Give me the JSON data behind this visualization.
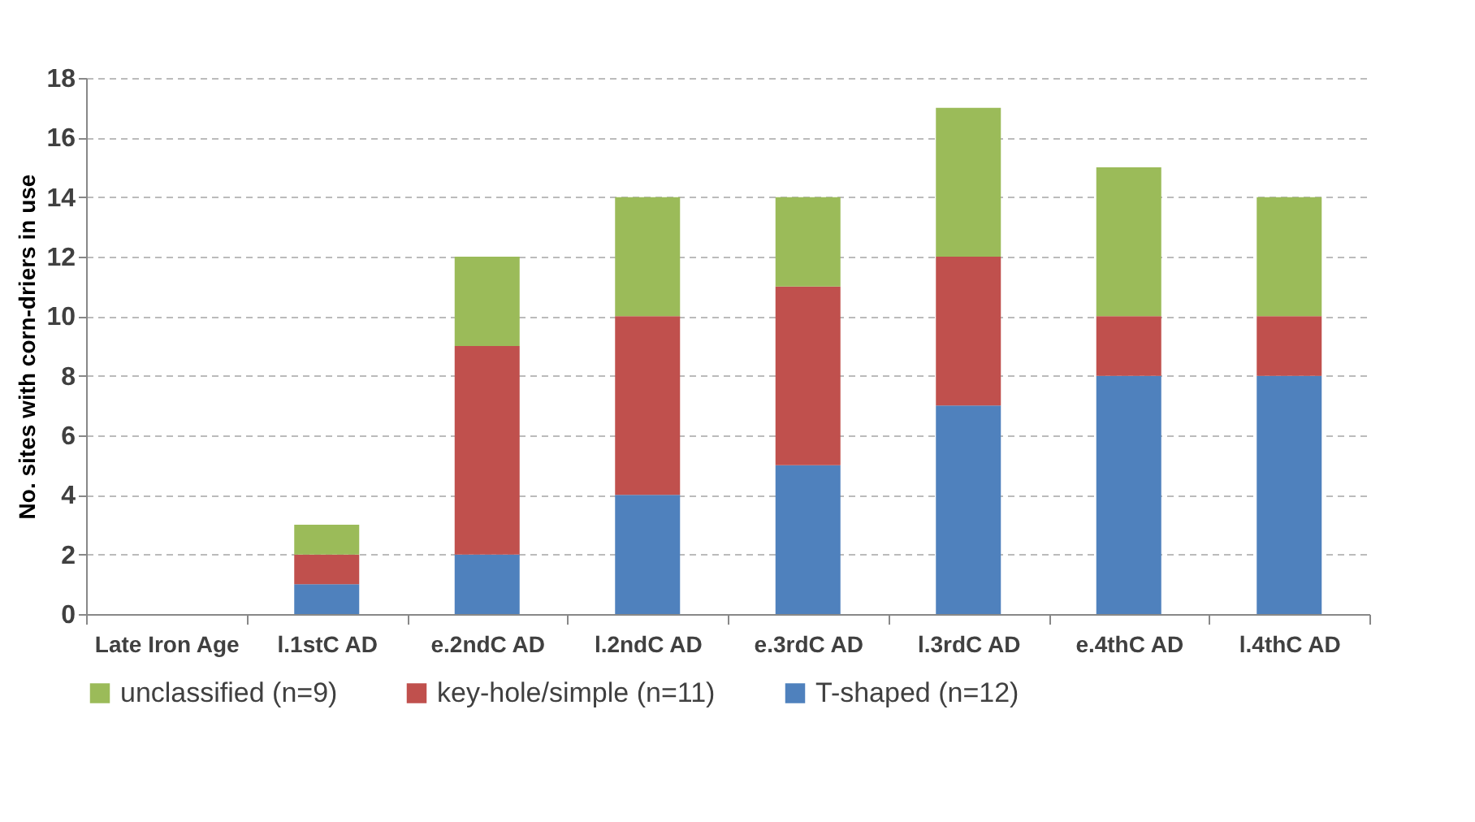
{
  "chart_data": {
    "type": "bar",
    "stacked": true,
    "ylabel": "No. sites with corn-driers in use",
    "categories": [
      "Late Iron Age",
      "l.1stC AD",
      "e.2ndC AD",
      "l.2ndC AD",
      "e.3rdC AD",
      "l.3rdC AD",
      "e.4thC AD",
      "l.4thC AD"
    ],
    "series": [
      {
        "name": "T-shaped (n=12)",
        "color": "#4f81bd",
        "values": [
          0,
          1,
          2,
          4,
          5,
          7,
          8,
          8
        ]
      },
      {
        "name": "key-hole/simple (n=11)",
        "color": "#c0504d",
        "values": [
          0,
          1,
          7,
          6,
          6,
          5,
          2,
          2
        ]
      },
      {
        "name": "unclassified (n=9)",
        "color": "#9bbb59",
        "values": [
          0,
          1,
          3,
          4,
          3,
          5,
          5,
          4
        ]
      }
    ],
    "ylim": [
      0,
      18
    ],
    "yticks": [
      0,
      2,
      4,
      6,
      8,
      10,
      12,
      14,
      16,
      18
    ],
    "grid": "y",
    "legend": "bottom"
  }
}
